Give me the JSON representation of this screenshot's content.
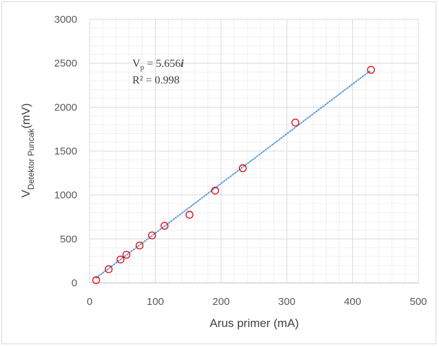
{
  "chart_data": {
    "type": "scatter",
    "xlabel": "Arus primer (mA)",
    "ylabel": {
      "main": "V",
      "subscript": "Detektor Puncak",
      "unit": "(mV)"
    },
    "xlim": [
      0,
      500
    ],
    "ylim": [
      0,
      3000
    ],
    "x_ticks": [
      "0",
      "100",
      "200",
      "300",
      "400",
      "500"
    ],
    "y_ticks": [
      "0",
      "500",
      "1000",
      "1500",
      "2000",
      "2500",
      "3000"
    ],
    "grid": "major and minor",
    "legend": "none",
    "series": [
      {
        "marker": "open-circle",
        "color": "#e00000",
        "x": [
          10,
          29,
          47,
          56,
          76,
          95,
          114,
          152,
          191,
          233,
          313,
          428
        ],
        "y": [
          30,
          155,
          265,
          320,
          425,
          540,
          650,
          775,
          1050,
          1305,
          1825,
          2425
        ]
      }
    ],
    "trendline": {
      "type": "linear",
      "style": "dotted",
      "color": "#5b9bd5",
      "x_range": [
        10,
        428
      ],
      "slope": 5.656,
      "equation": {
        "lhs": "V",
        "lhs_subscript": "p",
        "rhs": " = 5.656",
        "variable": "i"
      },
      "r_squared": "R² = 0.998"
    }
  }
}
